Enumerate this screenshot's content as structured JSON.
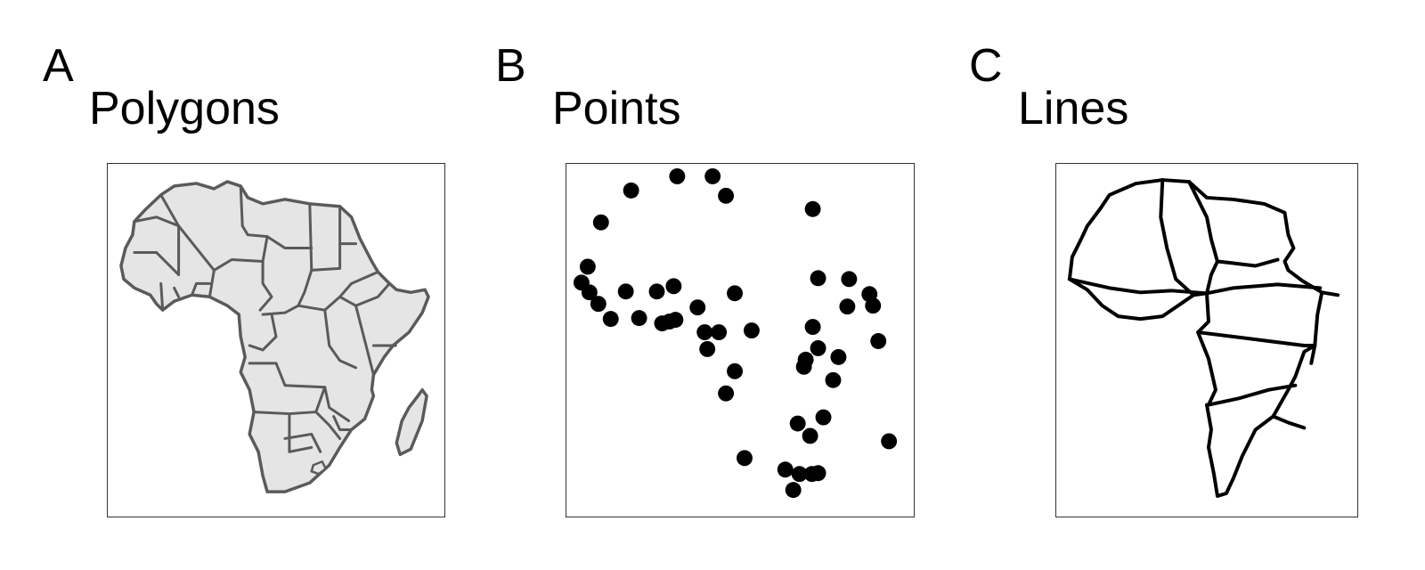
{
  "panels": [
    {
      "letter": "A",
      "title": "Polygons"
    },
    {
      "letter": "B",
      "title": "Points"
    },
    {
      "letter": "C",
      "title": "Lines"
    }
  ],
  "colors": {
    "polygon_fill": "#e5e5e5",
    "polygon_stroke": "#5a5a5a",
    "point_fill": "#000000",
    "line_stroke": "#000000",
    "frame_stroke": "#333333"
  }
}
